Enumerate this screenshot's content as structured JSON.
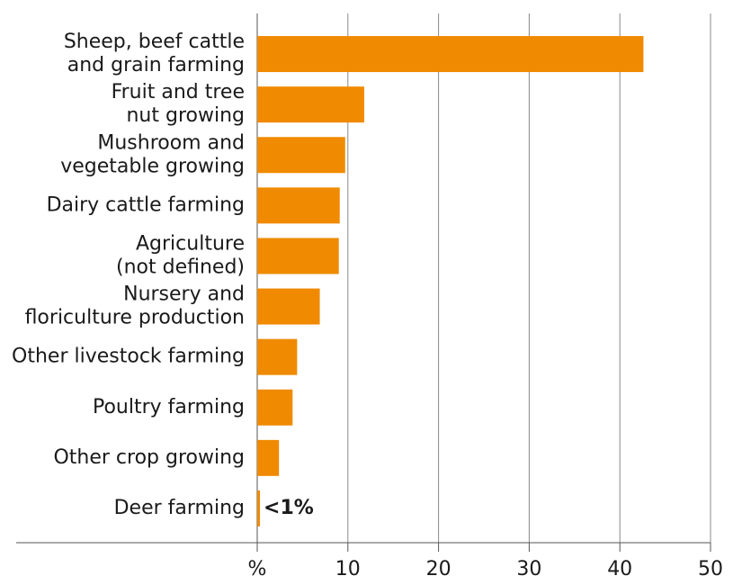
{
  "chart_data": {
    "type": "barh",
    "categories": [
      "Sheep, beef cattle\nand grain farming",
      "Fruit and tree\nnut growing",
      "Mushroom and\nvegetable growing",
      "Dairy cattle farming",
      "Agriculture\n(not defined)",
      "Nursery and\nfloriculture production",
      "Other livestock farming",
      "Poultry farming",
      "Other crop growing",
      "Deer farming"
    ],
    "values": [
      42.6,
      11.8,
      9.7,
      9.1,
      9.0,
      6.9,
      4.4,
      3.9,
      2.4,
      0.3
    ],
    "value_labels": [
      null,
      null,
      null,
      null,
      null,
      null,
      null,
      null,
      null,
      "<1%"
    ],
    "color": "#f08a00",
    "xlim": [
      0,
      50
    ],
    "xticks": [
      {
        "value": 0,
        "label": "%"
      },
      10,
      20,
      30,
      40,
      50
    ],
    "grid": true
  }
}
